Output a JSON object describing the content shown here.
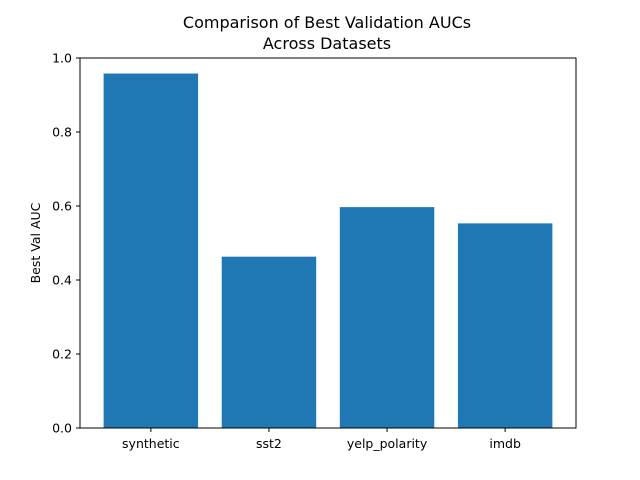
{
  "chart_data": {
    "type": "bar",
    "title_lines": [
      "Comparison of Best Validation AUCs",
      "Across Datasets"
    ],
    "xlabel": "",
    "ylabel": "Best Val AUC",
    "categories": [
      "synthetic",
      "sst2",
      "yelp_polarity",
      "imdb"
    ],
    "values": [
      0.958,
      0.463,
      0.597,
      0.553
    ],
    "ylim": [
      0,
      1.0
    ],
    "yticks": [
      "0.0",
      "0.2",
      "0.4",
      "0.6",
      "0.8",
      "1.0"
    ],
    "bar_color": "#1f77b4",
    "grid": false,
    "legend": "none"
  }
}
